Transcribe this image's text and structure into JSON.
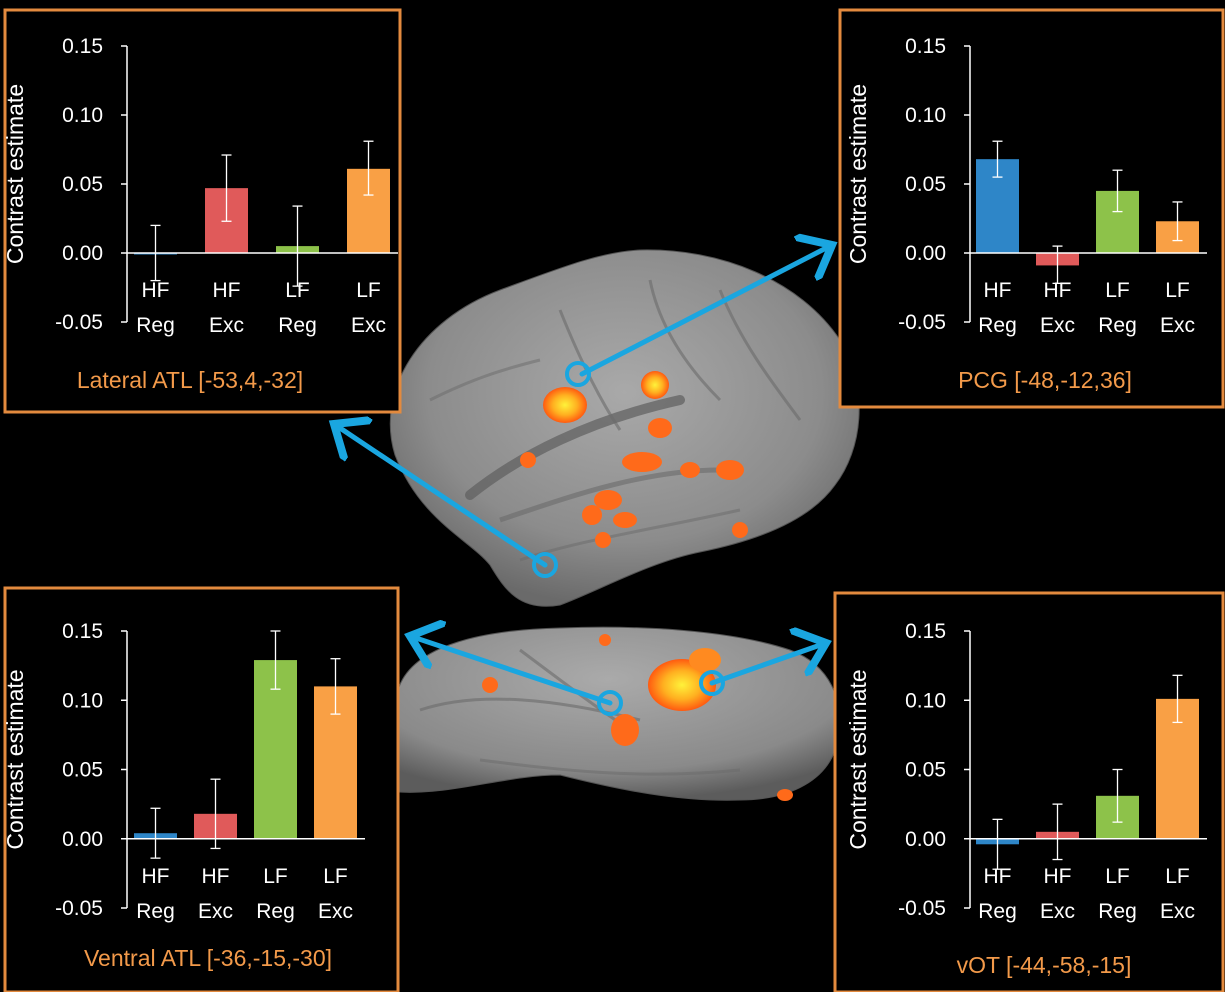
{
  "figure": {
    "panel_border_color": "#e38a3e",
    "arrow_color": "#1aa6e0",
    "region_label_color": "#f39a4a"
  },
  "chart_data": [
    {
      "type": "bar",
      "title": "Lateral ATL [-53,4,-32]",
      "ylabel": "Contrast estimate",
      "ylim": [
        -0.05,
        0.15
      ],
      "yticks": [
        "0.15",
        "0.10",
        "0.05",
        "0.00",
        "-0.05"
      ],
      "categories": [
        [
          "HF",
          "Reg"
        ],
        [
          "HF",
          "Exc"
        ],
        [
          "LF",
          "Reg"
        ],
        [
          "LF",
          "Exc"
        ]
      ],
      "values": [
        0.0,
        0.047,
        0.005,
        0.061
      ],
      "error_upper": [
        0.02,
        0.071,
        0.034,
        0.081
      ],
      "error_lower": [
        -0.02,
        0.023,
        -0.024,
        0.042
      ],
      "colors": [
        "#2e86c8",
        "#e05a5a",
        "#8dc24a",
        "#f9a045"
      ]
    },
    {
      "type": "bar",
      "title": "PCG [-48,-12,36]",
      "ylabel": "Contrast estimate",
      "ylim": [
        -0.05,
        0.15
      ],
      "yticks": [
        "0.15",
        "0.10",
        "0.05",
        "0.00",
        "-0.05"
      ],
      "categories": [
        [
          "HF",
          "Reg"
        ],
        [
          "HF",
          "Exc"
        ],
        [
          "LF",
          "Reg"
        ],
        [
          "LF",
          "Exc"
        ]
      ],
      "values": [
        0.068,
        -0.009,
        0.045,
        0.023
      ],
      "error_upper": [
        0.081,
        0.005,
        0.06,
        0.037
      ],
      "error_lower": [
        0.055,
        -0.022,
        0.03,
        0.009
      ],
      "colors": [
        "#2e86c8",
        "#e05a5a",
        "#8dc24a",
        "#f9a045"
      ]
    },
    {
      "type": "bar",
      "title": "Ventral ATL [-36,-15,-30]",
      "ylabel": "Contrast estimate",
      "ylim": [
        -0.05,
        0.15
      ],
      "yticks": [
        "0.15",
        "0.10",
        "0.05",
        "0.00",
        "-0.05"
      ],
      "categories": [
        [
          "HF",
          "Reg"
        ],
        [
          "HF",
          "Exc"
        ],
        [
          "LF",
          "Reg"
        ],
        [
          "LF",
          "Exc"
        ]
      ],
      "values": [
        0.004,
        0.018,
        0.129,
        0.11
      ],
      "error_upper": [
        0.022,
        0.043,
        0.15,
        0.13
      ],
      "error_lower": [
        -0.014,
        -0.007,
        0.108,
        0.09
      ],
      "colors": [
        "#2e86c8",
        "#e05a5a",
        "#8dc24a",
        "#f9a045"
      ]
    },
    {
      "type": "bar",
      "title": "vOT [-44,-58,-15]",
      "ylabel": "Contrast estimate",
      "ylim": [
        -0.05,
        0.15
      ],
      "yticks": [
        "0.15",
        "0.10",
        "0.05",
        "0.00",
        "-0.05"
      ],
      "categories": [
        [
          "HF",
          "Reg"
        ],
        [
          "HF",
          "Exc"
        ],
        [
          "LF",
          "Reg"
        ],
        [
          "LF",
          "Exc"
        ]
      ],
      "values": [
        -0.004,
        0.005,
        0.031,
        0.101
      ],
      "error_upper": [
        0.014,
        0.025,
        0.05,
        0.118
      ],
      "error_lower": [
        -0.022,
        -0.015,
        0.012,
        0.084
      ],
      "colors": [
        "#2e86c8",
        "#e05a5a",
        "#8dc24a",
        "#f9a045"
      ]
    }
  ]
}
